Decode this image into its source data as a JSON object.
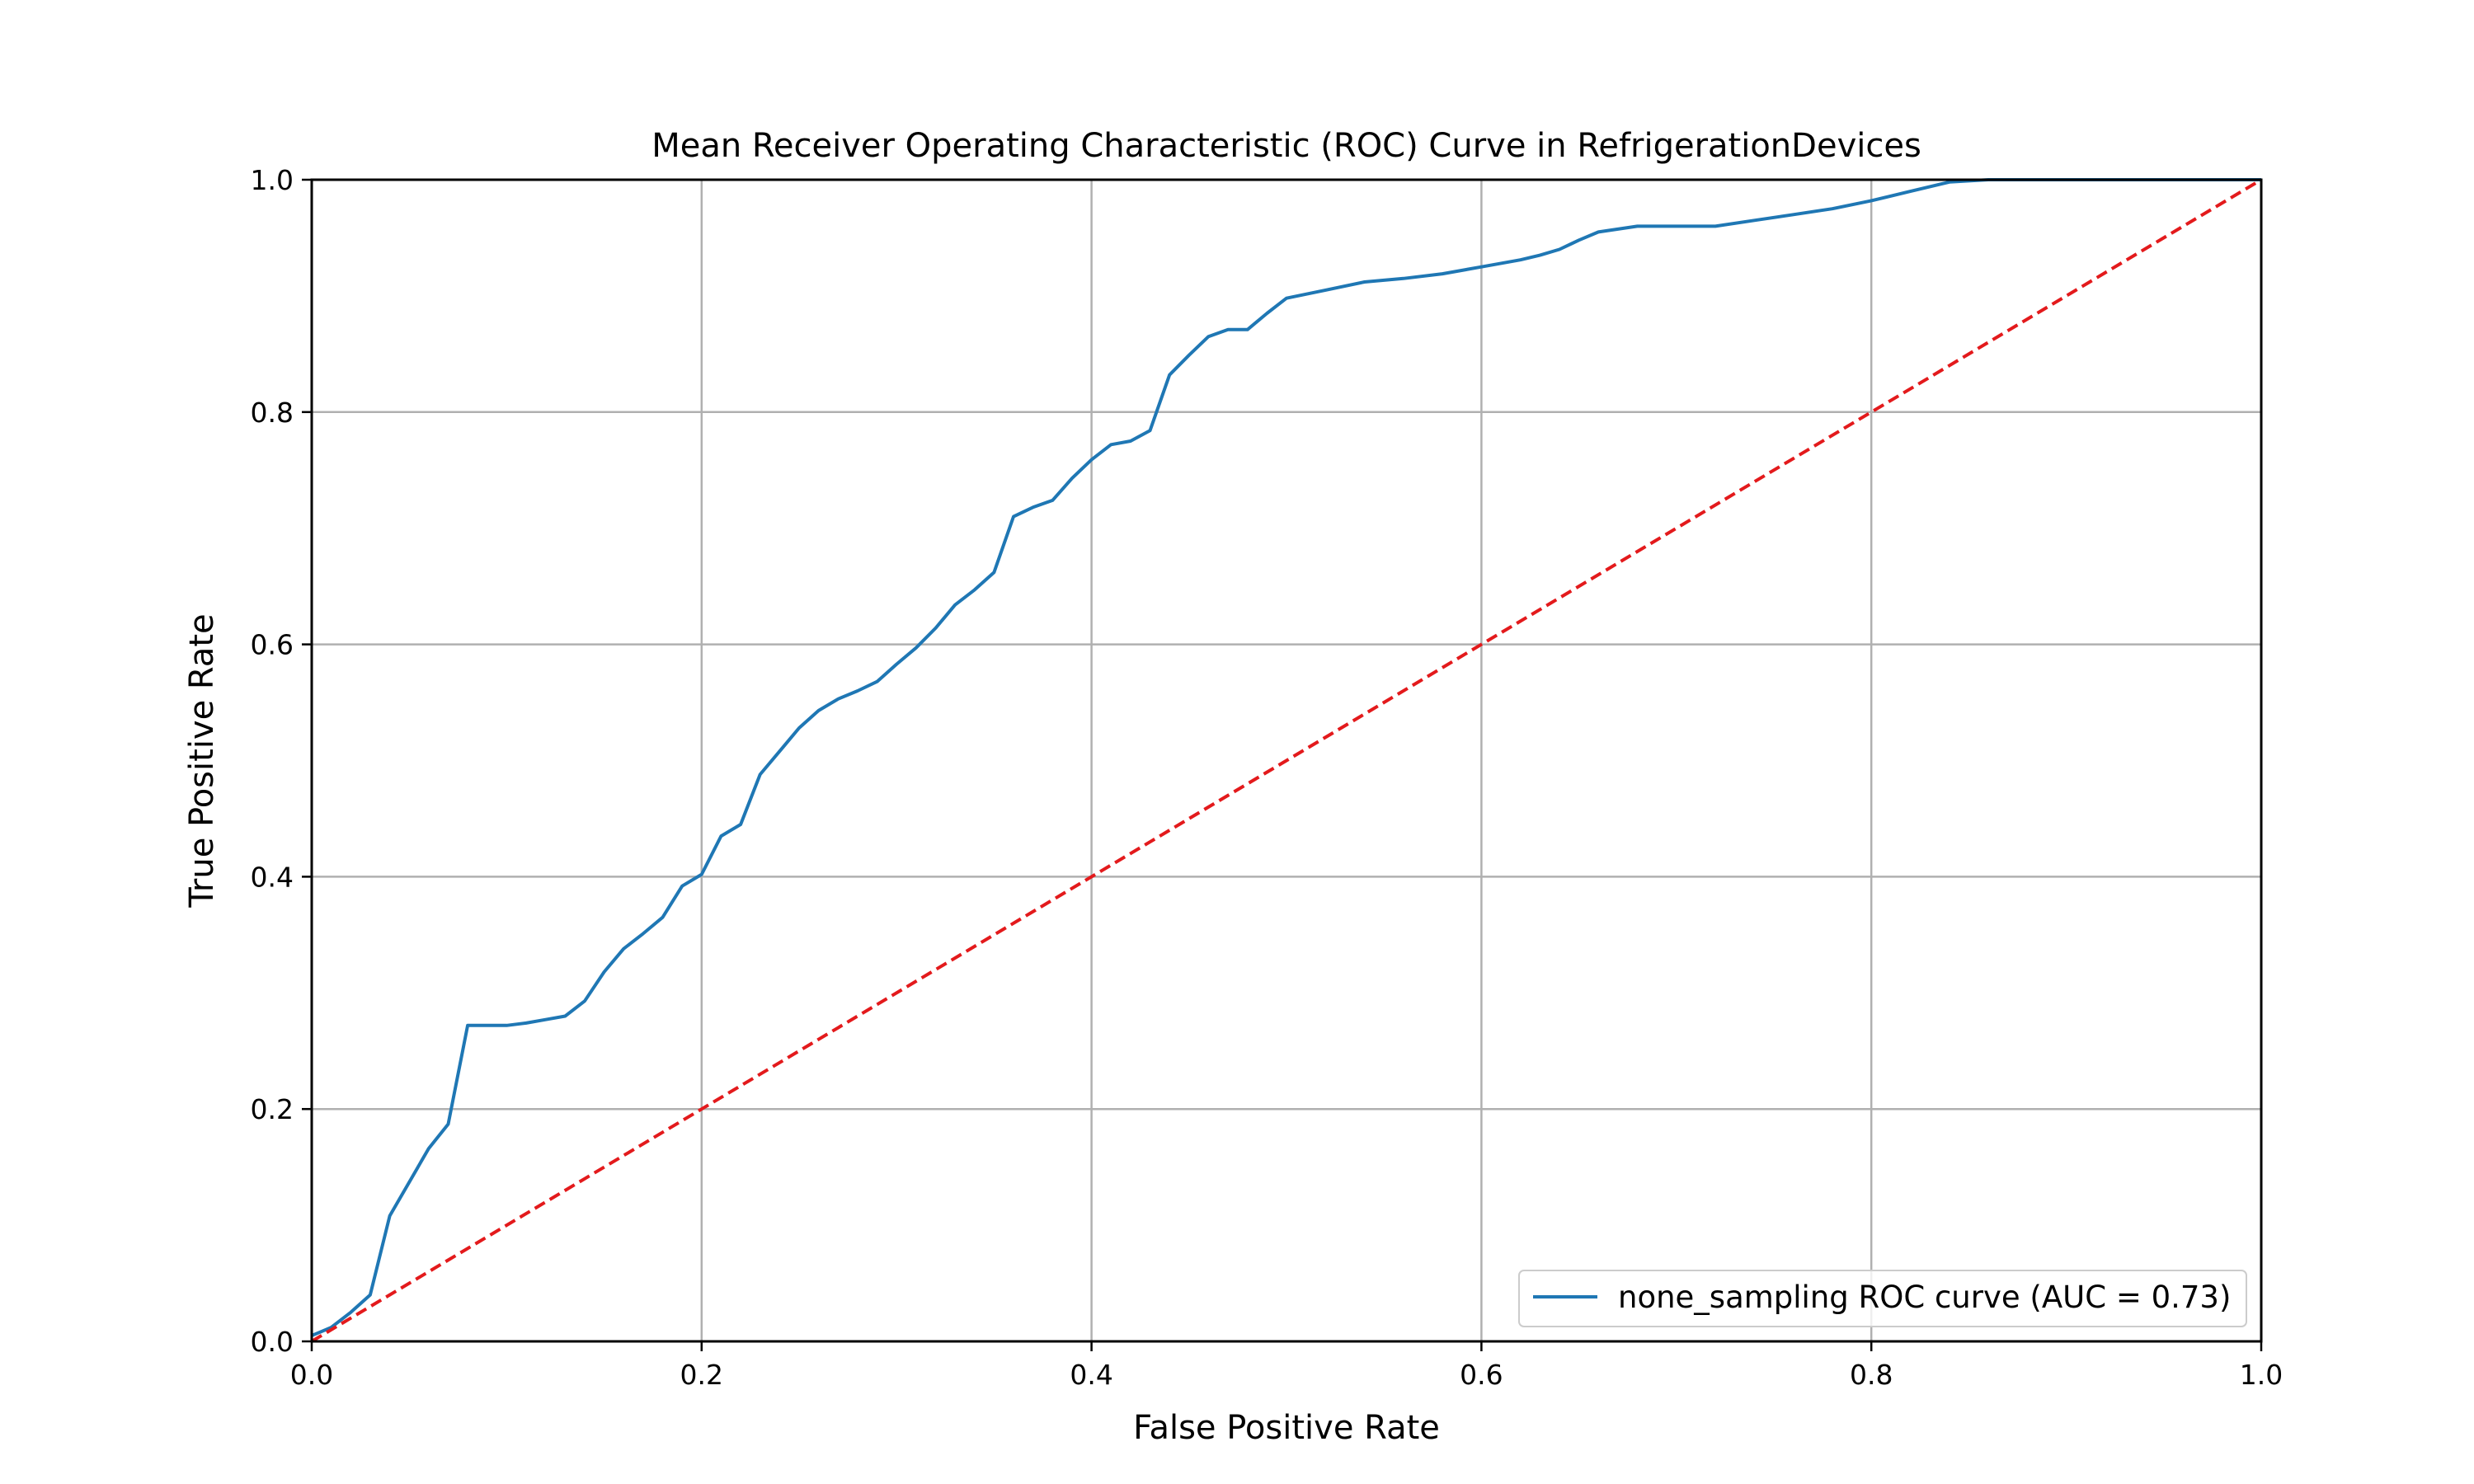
{
  "chart_data": {
    "type": "line",
    "title": "Mean Receiver Operating Characteristic (ROC) Curve in RefrigerationDevices",
    "xlabel": "False Positive Rate",
    "ylabel": "True Positive Rate",
    "xlim": [
      0.0,
      1.0
    ],
    "ylim": [
      0.0,
      1.0
    ],
    "xticks": [
      "0.0",
      "0.2",
      "0.4",
      "0.6",
      "0.8",
      "1.0"
    ],
    "yticks": [
      "0.0",
      "0.2",
      "0.4",
      "0.6",
      "0.8",
      "1.0"
    ],
    "grid": true,
    "legend_position": "lower-right",
    "series": [
      {
        "name": "none_sampling ROC curve (AUC = 0.73)",
        "color": "#1f77b4",
        "style": "solid",
        "x": [
          0.0,
          0.01,
          0.02,
          0.03,
          0.04,
          0.05,
          0.06,
          0.07,
          0.08,
          0.09,
          0.1,
          0.11,
          0.12,
          0.13,
          0.14,
          0.15,
          0.16,
          0.17,
          0.18,
          0.19,
          0.2,
          0.21,
          0.22,
          0.23,
          0.24,
          0.25,
          0.26,
          0.27,
          0.28,
          0.29,
          0.3,
          0.31,
          0.32,
          0.33,
          0.34,
          0.35,
          0.36,
          0.37,
          0.38,
          0.39,
          0.4,
          0.41,
          0.42,
          0.43,
          0.44,
          0.45,
          0.46,
          0.47,
          0.48,
          0.49,
          0.5,
          0.52,
          0.54,
          0.56,
          0.58,
          0.6,
          0.62,
          0.63,
          0.64,
          0.65,
          0.66,
          0.68,
          0.7,
          0.72,
          0.74,
          0.76,
          0.78,
          0.8,
          0.82,
          0.84,
          0.86,
          0.9,
          0.95,
          1.0
        ],
        "y": [
          0.005,
          0.012,
          0.025,
          0.04,
          0.108,
          0.137,
          0.166,
          0.187,
          0.272,
          0.272,
          0.272,
          0.274,
          0.277,
          0.28,
          0.293,
          0.318,
          0.338,
          0.351,
          0.365,
          0.392,
          0.402,
          0.435,
          0.445,
          0.488,
          0.508,
          0.528,
          0.543,
          0.553,
          0.56,
          0.568,
          0.583,
          0.597,
          0.614,
          0.634,
          0.647,
          0.662,
          0.71,
          0.718,
          0.724,
          0.743,
          0.759,
          0.772,
          0.775,
          0.784,
          0.832,
          0.849,
          0.865,
          0.871,
          0.871,
          0.885,
          0.898,
          0.905,
          0.912,
          0.915,
          0.919,
          0.925,
          0.931,
          0.935,
          0.94,
          0.948,
          0.955,
          0.96,
          0.96,
          0.96,
          0.965,
          0.97,
          0.975,
          0.982,
          0.99,
          0.998,
          1.0,
          1.0,
          1.0,
          1.0
        ]
      },
      {
        "name": "",
        "color": "#e31a1c",
        "style": "dashed",
        "x": [
          0.0,
          1.0
        ],
        "y": [
          0.0,
          1.0
        ]
      }
    ]
  }
}
